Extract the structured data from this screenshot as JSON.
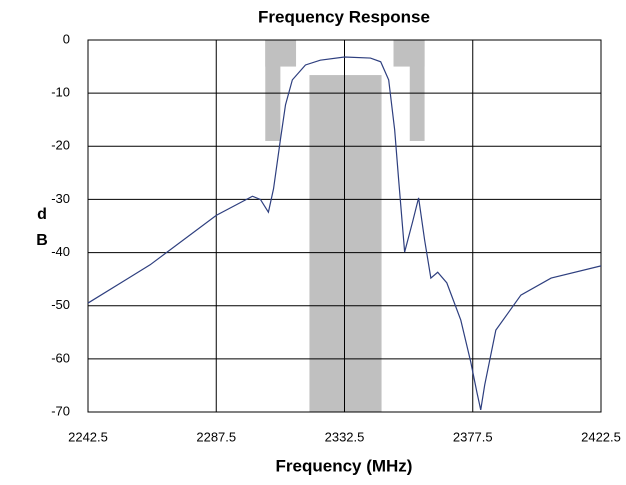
{
  "chart_data": {
    "type": "line",
    "title": "Frequency Response",
    "xlabel": "Frequency (MHz)",
    "ylabel": "dB",
    "x": [
      2242.5,
      2264.3,
      2287.5,
      2300.2,
      2303,
      2305.8,
      2307.6,
      2310,
      2311.8,
      2314.2,
      2318.8,
      2324,
      2332.5,
      2341.6,
      2345.2,
      2348,
      2350.1,
      2351.5,
      2353.6,
      2356.4,
      2358.5,
      2360.6,
      2362.8,
      2365.2,
      2368.4,
      2373.3,
      2376.8,
      2379,
      2380.3,
      2381.7,
      2385.6,
      2394.4,
      2405,
      2422.5
    ],
    "series": [
      {
        "color": "#2e3f7f",
        "values": [
          -49.5,
          -42.3,
          -33,
          -29.4,
          -30,
          -32.4,
          -28,
          -18.8,
          -12.2,
          -7.5,
          -4.7,
          -3.8,
          -3.2,
          -3.4,
          -4.1,
          -7.5,
          -16.9,
          -26.3,
          -39.9,
          -34.2,
          -29.7,
          -37.6,
          -44.8,
          -43.7,
          -45.7,
          -52.7,
          -60.6,
          -66.4,
          -69.6,
          -64.9,
          -54.6,
          -48,
          -44.8,
          -42.5
        ]
      }
    ],
    "regions": {
      "color": "#c0c0c0",
      "items": [
        {
          "x": [
            2320.2,
            2345.5
          ],
          "y": [
            -6.6,
            -70
          ]
        },
        {
          "x": [
            2304.7,
            2310
          ],
          "y": [
            0,
            -19
          ]
        },
        {
          "x": [
            2304.7,
            2315.5
          ],
          "y": [
            0,
            -5
          ]
        },
        {
          "x": [
            2355.4,
            2360.6
          ],
          "y": [
            0,
            -19
          ]
        },
        {
          "x": [
            2349.7,
            2360.6
          ],
          "y": [
            0,
            -5
          ]
        }
      ]
    },
    "xlim": [
      2242.5,
      2422.5
    ],
    "xticks": [
      2242.5,
      2287.5,
      2332.5,
      2377.5,
      2422.5
    ],
    "ylim": [
      -70,
      0
    ],
    "yticks": [
      0,
      -10,
      -20,
      -30,
      -40,
      -50,
      -60,
      -70
    ],
    "grid": true
  }
}
